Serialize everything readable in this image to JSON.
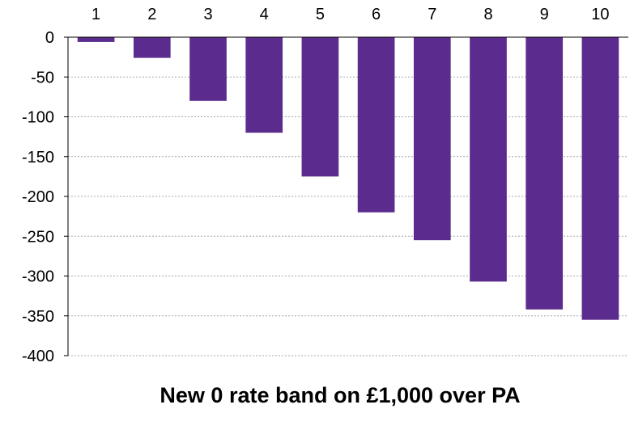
{
  "chart_data": {
    "type": "bar",
    "title": "New 0 rate band on £1,000 over PA",
    "xlabel": "",
    "ylabel": "",
    "categories": [
      "1",
      "2",
      "3",
      "4",
      "5",
      "6",
      "7",
      "8",
      "9",
      "10"
    ],
    "values": [
      -6,
      -26,
      -80,
      -120,
      -175,
      -220,
      -255,
      -307,
      -342,
      -355
    ],
    "ylim": [
      -400,
      0
    ],
    "yticks": [
      0,
      -50,
      -100,
      -150,
      -200,
      -250,
      -300,
      -350,
      -400
    ],
    "ytick_labels": [
      "0",
      "-50",
      "-100",
      "-150",
      "-200",
      "-250",
      "-300",
      "-350",
      "-400"
    ],
    "x_axis_position": "top",
    "grid": true,
    "legend": "none",
    "bar_color": "#5b2c8d"
  }
}
